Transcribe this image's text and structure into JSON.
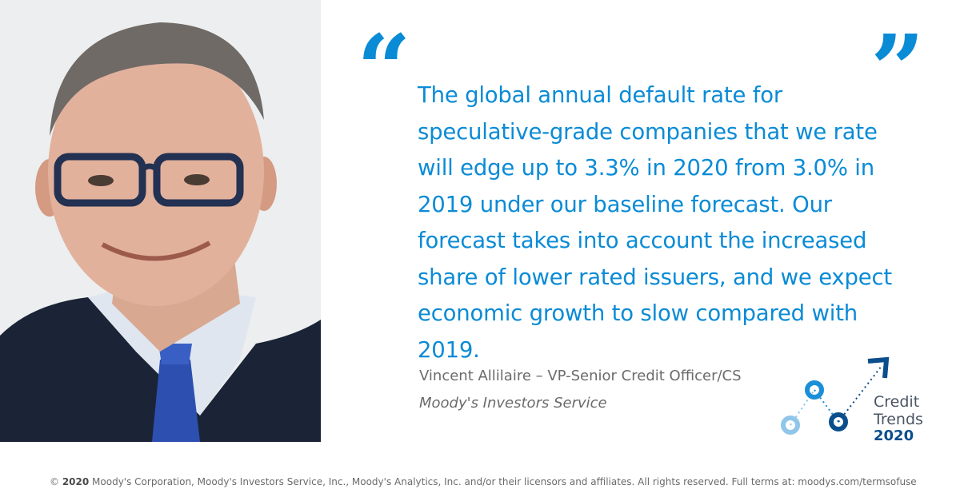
{
  "quote": {
    "open_mark": "“",
    "close_mark": "”",
    "text": "The global annual default rate for speculative-grade companies that we rate will edge up to 3.3% in 2020 from 3.0% in 2019 under our baseline forecast. Our forecast takes into account the increased share of lower rated issuers, and we expect economic growth to slow compared with 2019."
  },
  "attribution": {
    "name": "Vincent Allilaire – VP-Senior Credit Officer/CS",
    "organization": "Moody's Investors Service"
  },
  "logo": {
    "word1": "Credit",
    "word2": "Trends",
    "year": "2020",
    "colors": {
      "light": "#8fc6ea",
      "mid": "#1a8fd8",
      "dark": "#0b4e8c"
    }
  },
  "footer": {
    "year": "2020",
    "copyright_prefix": "©",
    "copyright_text": " Moody's Corporation, Moody's Investors Service, Inc., Moody's Analytics, Inc. and/or their licensors and affiliates. All rights reserved. Full terms at: moodys.com/termsofuse"
  },
  "colors": {
    "accent": "#0a8bd6",
    "muted_text": "#6b6b6b"
  }
}
